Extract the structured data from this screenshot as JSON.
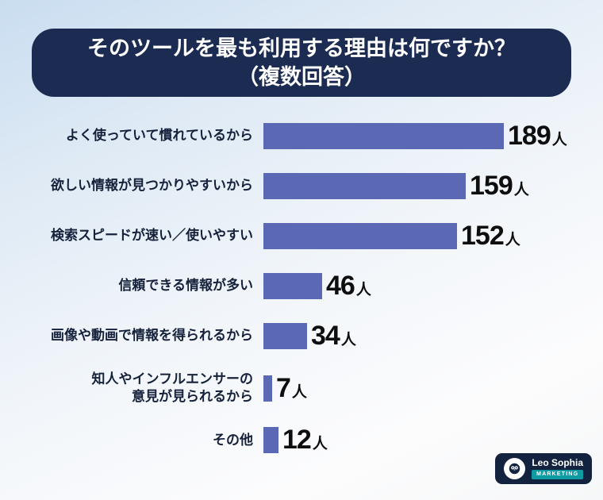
{
  "title": {
    "line1": "そのツールを最も利用する理由は何ですか？",
    "line2": "（複数回答）"
  },
  "chart_data": {
    "type": "bar",
    "orientation": "horizontal",
    "title": "そのツールを最も利用する理由は何ですか？（複数回答）",
    "categories": [
      "よく使っていて慣れているから",
      "欲しい情報が見つかりやすいから",
      "検索スピードが速い／使いやすい",
      "信頼できる情報が多い",
      "画像や動画で情報を得られるから",
      "知人やインフルエンサーの\n意見が見られるから",
      "その他"
    ],
    "values": [
      189,
      159,
      152,
      46,
      34,
      7,
      12
    ],
    "unit": "人",
    "xlim": [
      0,
      189
    ],
    "bar_color": "#5b69b5",
    "grid": false,
    "legend": "none"
  },
  "logo": {
    "brand": "Leo Sophia",
    "sub": "MARKETING"
  },
  "colors": {
    "banner": "#1c2b52",
    "bar": "#5b69b5",
    "value_text": "#0e0e0e",
    "background_top": "#c9ddf0",
    "background_bottom": "#f6f7f8"
  }
}
